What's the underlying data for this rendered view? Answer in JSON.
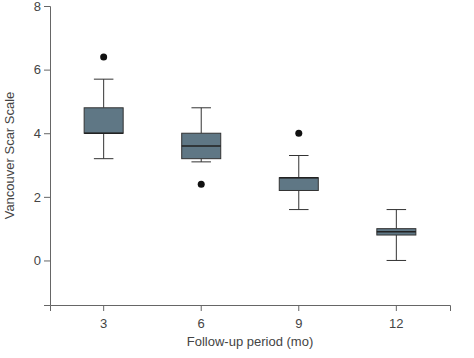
{
  "chart_data": {
    "type": "box",
    "x_label": "Follow-up period (mo)",
    "y_label": "Vancouver Scar Scale",
    "categories": [
      "3",
      "6",
      "9",
      "12"
    ],
    "whisker_low": [
      3.2,
      3.1,
      1.6,
      0.0
    ],
    "q1": [
      4.0,
      3.2,
      2.2,
      0.8
    ],
    "median": [
      4.0,
      3.6,
      2.6,
      0.9
    ],
    "q3": [
      4.8,
      4.0,
      2.6,
      1.0
    ],
    "whisker_high": [
      5.7,
      4.8,
      3.3,
      1.6
    ],
    "outliers": [
      [
        6.4
      ],
      [
        2.4
      ],
      [
        4.0
      ],
      []
    ],
    "color": "#5f7785",
    "ylim": [
      -1.4,
      8
    ],
    "yticks": [
      0,
      2,
      4,
      6,
      8
    ],
    "grid": false
  }
}
